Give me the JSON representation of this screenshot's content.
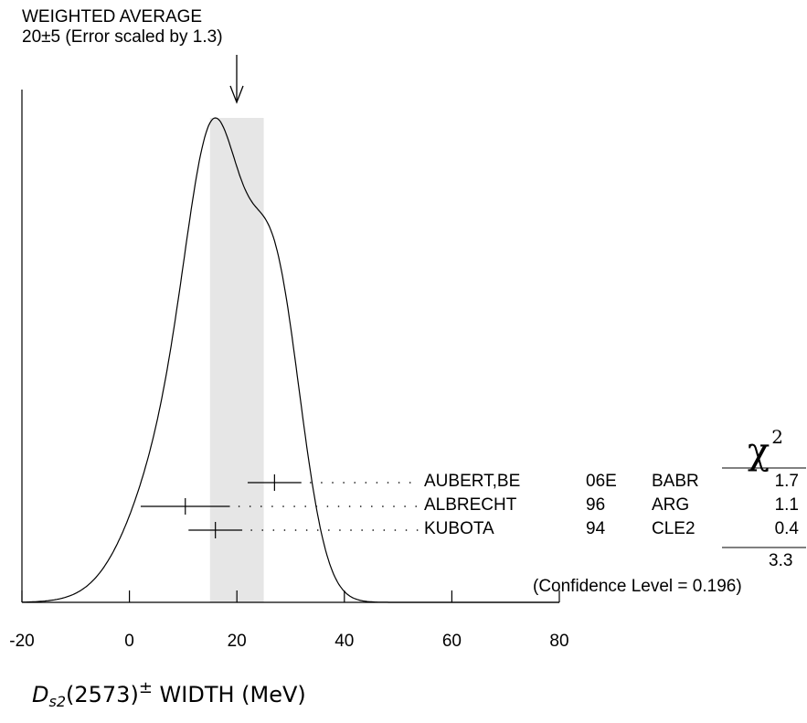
{
  "average": {
    "line1": "WEIGHTED AVERAGE",
    "line2": "20±5 (Error scaled by 1.3)",
    "value": 20,
    "error": 5,
    "scale_factor": 1.3
  },
  "chi2": {
    "symbol": "χ",
    "power": "2",
    "total": "3.3",
    "confidence_text": "(Confidence Level = 0.196)"
  },
  "xaxis": {
    "symbol": "D",
    "sub": "s2",
    "name": "(2573)",
    "sup": "±",
    "rest": " WIDTH (MeV)"
  },
  "chart_data": {
    "type": "scatter",
    "xlabel": "D_s2(2573)± WIDTH (MeV)",
    "xlim": [
      -20,
      80
    ],
    "xticks": [
      -20,
      0,
      20,
      40,
      60,
      80
    ],
    "xtick_labels": [
      "-20",
      "0",
      "20",
      "40",
      "60",
      "80"
    ],
    "band": {
      "from": 15,
      "to": 25
    },
    "measurements": [
      {
        "author": "AUBERT,BE",
        "year": "06E",
        "experiment": "BABR",
        "chi2": "1.7",
        "value": 27,
        "err_minus": 5,
        "err_plus": 5
      },
      {
        "author": "ALBRECHT",
        "year": "96",
        "experiment": "ARG",
        "chi2": "1.1",
        "value": 10.4,
        "err_minus": 8.3,
        "err_plus": 8.3
      },
      {
        "author": "KUBOTA",
        "year": "94",
        "experiment": "CLE2",
        "chi2": "0.4",
        "value": 16,
        "err_minus": 5,
        "err_plus": 5
      }
    ]
  }
}
